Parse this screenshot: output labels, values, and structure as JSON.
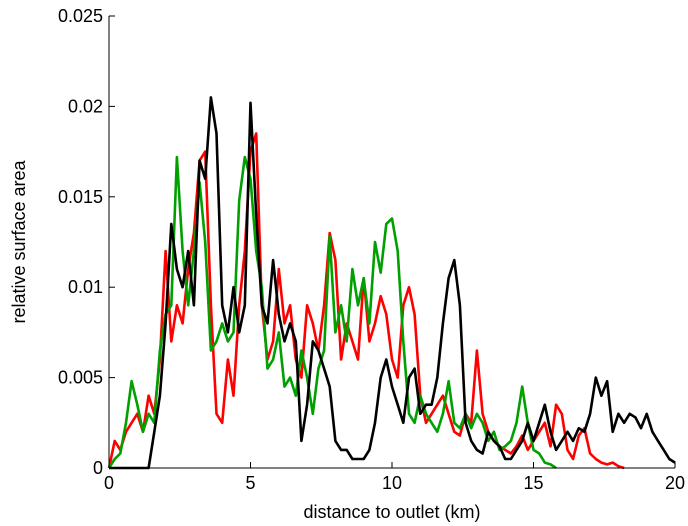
{
  "chart_data": {
    "type": "line",
    "xlabel": "distance to outlet (km)",
    "ylabel": "relative surface area",
    "xlim": [
      0,
      20
    ],
    "ylim": [
      0,
      0.025
    ],
    "xticks": [
      0,
      5,
      10,
      15,
      20
    ],
    "yticks": [
      0,
      0.005,
      0.01,
      0.015,
      0.02,
      0.025
    ],
    "ytick_labels": [
      "0",
      "0.005",
      "0.01",
      "0.015",
      "0.02",
      "0.025"
    ],
    "xtick_labels": [
      "0",
      "5",
      "10",
      "15",
      "20"
    ],
    "grid": false,
    "series": [
      {
        "color": "#ff0000",
        "x": [
          0,
          0.2,
          0.4,
          0.6,
          0.8,
          1.0,
          1.2,
          1.4,
          1.6,
          1.8,
          2.0,
          2.2,
          2.4,
          2.6,
          2.8,
          3.0,
          3.2,
          3.4,
          3.6,
          3.8,
          4.0,
          4.2,
          4.4,
          4.6,
          4.8,
          5.0,
          5.2,
          5.4,
          5.6,
          5.8,
          6.0,
          6.2,
          6.4,
          6.6,
          6.8,
          7.0,
          7.2,
          7.4,
          7.6,
          7.8,
          8.0,
          8.2,
          8.4,
          8.6,
          8.8,
          9.0,
          9.2,
          9.4,
          9.6,
          9.8,
          10.0,
          10.2,
          10.4,
          10.6,
          10.8,
          11.0,
          11.2,
          11.4,
          11.6,
          11.8,
          12.0,
          12.2,
          12.4,
          12.6,
          12.8,
          13.0,
          13.2,
          13.4,
          13.6,
          13.8,
          14.0,
          14.2,
          14.4,
          14.6,
          14.8,
          15.0,
          15.2,
          15.4,
          15.6,
          15.8,
          16.0,
          16.2,
          16.4,
          16.6,
          16.8,
          17.0,
          17.2,
          17.4,
          17.6,
          17.8,
          18.0,
          18.2
        ],
        "y": [
          0,
          0.0015,
          0.001,
          0.002,
          0.0025,
          0.003,
          0.002,
          0.004,
          0.003,
          0.006,
          0.012,
          0.007,
          0.009,
          0.008,
          0.011,
          0.013,
          0.017,
          0.0175,
          0.009,
          0.003,
          0.0025,
          0.006,
          0.004,
          0.009,
          0.012,
          0.0175,
          0.0185,
          0.009,
          0.006,
          0.007,
          0.011,
          0.008,
          0.009,
          0.006,
          0.005,
          0.009,
          0.008,
          0.0065,
          0.009,
          0.013,
          0.0115,
          0.006,
          0.008,
          0.007,
          0.006,
          0.0105,
          0.007,
          0.008,
          0.0095,
          0.0085,
          0.006,
          0.005,
          0.009,
          0.01,
          0.0085,
          0.004,
          0.0025,
          0.003,
          0.0035,
          0.004,
          0.003,
          0.002,
          0.0018,
          0.003,
          0.0025,
          0.0065,
          0.003,
          0.002,
          0.0015,
          0.0012,
          0.001,
          0.0008,
          0.0012,
          0.0018,
          0.001,
          0.0015,
          0.002,
          0.0025,
          0.0012,
          0.0035,
          0.003,
          0.001,
          0.0005,
          0.0018,
          0.0022,
          0.0008,
          0.0005,
          0.0003,
          0.0002,
          0.0003,
          0.0001,
          0.0
        ]
      },
      {
        "color": "#00a000",
        "x": [
          0,
          0.2,
          0.4,
          0.6,
          0.8,
          1.0,
          1.2,
          1.4,
          1.6,
          1.8,
          2.0,
          2.2,
          2.4,
          2.6,
          2.8,
          3.0,
          3.2,
          3.4,
          3.6,
          3.8,
          4.0,
          4.2,
          4.4,
          4.6,
          4.8,
          5.0,
          5.2,
          5.4,
          5.6,
          5.8,
          6.0,
          6.2,
          6.4,
          6.6,
          6.8,
          7.0,
          7.2,
          7.4,
          7.6,
          7.8,
          8.0,
          8.2,
          8.4,
          8.6,
          8.8,
          9.0,
          9.2,
          9.4,
          9.6,
          9.8,
          10.0,
          10.2,
          10.4,
          10.6,
          10.8,
          11.0,
          11.2,
          11.4,
          11.6,
          11.8,
          12.0,
          12.2,
          12.4,
          12.6,
          12.8,
          13.0,
          13.2,
          13.4,
          13.6,
          13.8,
          14.0,
          14.2,
          14.4,
          14.6,
          14.8,
          15.0,
          15.2,
          15.4,
          15.6,
          15.8
        ],
        "y": [
          0,
          0.0005,
          0.0008,
          0.0025,
          0.0048,
          0.0035,
          0.002,
          0.003,
          0.0025,
          0.0065,
          0.0085,
          0.009,
          0.0172,
          0.012,
          0.009,
          0.012,
          0.0158,
          0.0125,
          0.0065,
          0.007,
          0.008,
          0.007,
          0.0075,
          0.0148,
          0.0172,
          0.016,
          0.012,
          0.01,
          0.0055,
          0.006,
          0.0075,
          0.0045,
          0.005,
          0.004,
          0.0065,
          0.005,
          0.003,
          0.0055,
          0.0065,
          0.0128,
          0.0075,
          0.009,
          0.007,
          0.011,
          0.009,
          0.0105,
          0.008,
          0.0125,
          0.0108,
          0.0135,
          0.0138,
          0.012,
          0.007,
          0.003,
          0.0025,
          0.004,
          0.003,
          0.0025,
          0.002,
          0.003,
          0.0048,
          0.0025,
          0.0022,
          0.003,
          0.0022,
          0.003,
          0.0025,
          0.0015,
          0.002,
          0.001,
          0.0012,
          0.0015,
          0.0025,
          0.0045,
          0.0025,
          0.001,
          0.0008,
          0.0003,
          0.0002,
          0.0
        ]
      },
      {
        "color": "#000000",
        "x": [
          0,
          0.2,
          0.4,
          0.6,
          0.8,
          1.0,
          1.2,
          1.4,
          1.6,
          1.8,
          2.0,
          2.2,
          2.4,
          2.6,
          2.8,
          3.0,
          3.2,
          3.4,
          3.6,
          3.8,
          4.0,
          4.2,
          4.4,
          4.6,
          4.8,
          5.0,
          5.2,
          5.4,
          5.6,
          5.8,
          6.0,
          6.2,
          6.4,
          6.6,
          6.8,
          7.0,
          7.2,
          7.4,
          7.6,
          7.8,
          8.0,
          8.2,
          8.4,
          8.6,
          8.8,
          9.0,
          9.2,
          9.4,
          9.6,
          9.8,
          10.0,
          10.2,
          10.4,
          10.6,
          10.8,
          11.0,
          11.2,
          11.4,
          11.6,
          11.8,
          12.0,
          12.2,
          12.4,
          12.6,
          12.8,
          13.0,
          13.2,
          13.4,
          13.6,
          13.8,
          14.0,
          14.2,
          14.4,
          14.6,
          14.8,
          15.0,
          15.2,
          15.4,
          15.6,
          15.8,
          16.0,
          16.2,
          16.4,
          16.6,
          16.8,
          17.0,
          17.2,
          17.4,
          17.6,
          17.8,
          18.0,
          18.2,
          18.4,
          18.6,
          18.8,
          19.0,
          19.2,
          19.4,
          19.6,
          19.8,
          20.0
        ],
        "y": [
          0,
          0,
          0,
          0,
          0,
          0,
          0,
          0,
          0.002,
          0.004,
          0.008,
          0.0135,
          0.011,
          0.01,
          0.012,
          0.009,
          0.017,
          0.016,
          0.0205,
          0.0185,
          0.009,
          0.0075,
          0.01,
          0.0075,
          0.009,
          0.0202,
          0.014,
          0.009,
          0.008,
          0.0115,
          0.0085,
          0.007,
          0.008,
          0.007,
          0.0015,
          0.0035,
          0.007,
          0.0065,
          0.0055,
          0.0045,
          0.0015,
          0.001,
          0.001,
          0.0005,
          0.0005,
          0.0005,
          0.001,
          0.0025,
          0.005,
          0.006,
          0.0045,
          0.0035,
          0.0025,
          0.005,
          0.0055,
          0.003,
          0.0035,
          0.0035,
          0.005,
          0.008,
          0.0105,
          0.0115,
          0.009,
          0.0025,
          0.0015,
          0.001,
          0.0008,
          0.002,
          0.0015,
          0.0012,
          0.0005,
          0.0005,
          0.001,
          0.0015,
          0.0025,
          0.0015,
          0.0025,
          0.0035,
          0.002,
          0.001,
          0.0015,
          0.002,
          0.0015,
          0.0022,
          0.002,
          0.003,
          0.005,
          0.004,
          0.0048,
          0.002,
          0.003,
          0.0025,
          0.003,
          0.0028,
          0.0022,
          0.003,
          0.002,
          0.0015,
          0.001,
          0.0005,
          0.0003
        ]
      }
    ]
  }
}
